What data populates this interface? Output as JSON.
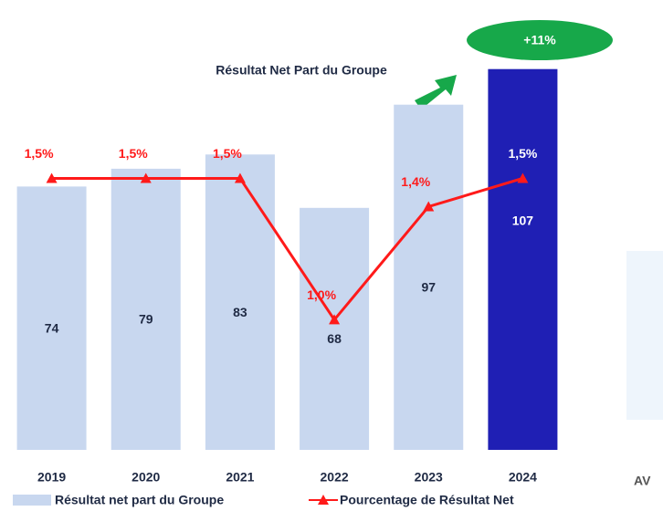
{
  "chart_data": {
    "type": "bar",
    "title": "Résultat Net Part du Groupe",
    "annotation": "+11%",
    "categories": [
      "2019",
      "2020",
      "2021",
      "2022",
      "2023",
      "2024"
    ],
    "ylim": [
      0,
      120
    ],
    "y2lim": [
      0.54,
      2.05
    ],
    "series": [
      {
        "name": "Résultat net part du Groupe",
        "type": "bar",
        "colors": [
          "#c8d7ef",
          "#c8d7ef",
          "#c8d7ef",
          "#c8d7ef",
          "#c8d7ef",
          "#1f1fb4"
        ],
        "values": [
          74,
          79,
          83,
          68,
          97,
          107
        ]
      },
      {
        "name": "Pourcentage de Résultat Net",
        "type": "line",
        "axis": "y2",
        "color": "#ff1a1a",
        "values": [
          1.5,
          1.5,
          1.5,
          1.0,
          1.4,
          1.5
        ],
        "value_labels": [
          "1,5%",
          "1,5%",
          "1,5%",
          "1,0%",
          "1,4%",
          "1,5%"
        ]
      }
    ],
    "side_text": "AV"
  }
}
